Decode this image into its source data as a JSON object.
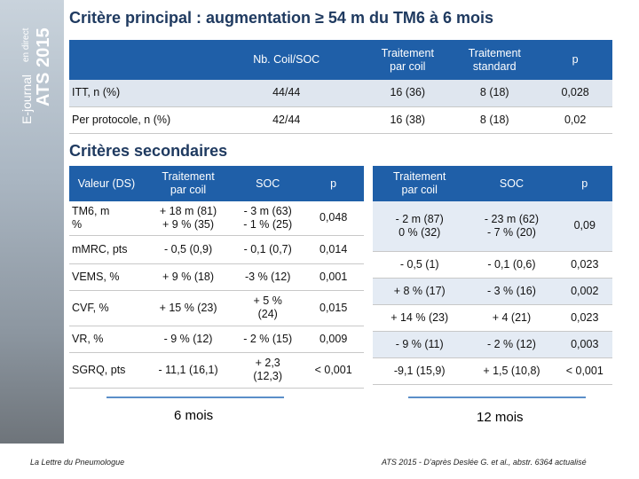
{
  "sidebar": {
    "brand": "E-journal",
    "live": "en direct",
    "event": "ATS 2015"
  },
  "title": "Critère principal : augmentation ≥ 54 m du TM6 à 6 mois",
  "primary_table": {
    "header": [
      "Nb. Coil/SOC",
      "Traitement\npar coil",
      "Traitement\nstandard",
      "p"
    ],
    "rows": [
      [
        "ITT, n (%)",
        "44/44",
        "16 (36)",
        "8 (18)",
        "0,028"
      ],
      [
        "Per protocole, n (%)",
        "42/44",
        "16 (38)",
        "8 (18)",
        "0,02"
      ]
    ]
  },
  "secondary_title": "Critères secondaires",
  "table_6_months": {
    "header": [
      "Valeur (DS)",
      "Traitement\npar coil",
      "SOC",
      "p"
    ],
    "rows": [
      [
        "TM6, m\n%",
        "+ 18 m (81)\n+ 9 % (35)",
        "- 3 m (63)\n- 1 % (25)",
        "0,048"
      ],
      [
        "mMRC, pts",
        "- 0,5 (0,9)",
        "- 0,1 (0,7)",
        "0,014"
      ],
      [
        "VEMS, %",
        "+ 9 % (18)",
        "-3 % (12)",
        "0,001"
      ],
      [
        "CVF, %",
        "+ 15 % (23)",
        "+ 5 %\n(24)",
        "0,015"
      ],
      [
        "VR, %",
        "- 9 % (12)",
        "- 2 % (15)",
        "0,009"
      ],
      [
        "SGRQ, pts",
        "- 11,1 (16,1)",
        "+ 2,3\n(12,3)",
        "< 0,001"
      ]
    ],
    "label": "6 mois"
  },
  "table_12_months": {
    "header": [
      "Traitement\npar coil",
      "SOC",
      "p"
    ],
    "rows": [
      [
        "- 2 m (87)\n0 % (32)",
        "- 23 m (62)\n- 7 % (20)",
        "0,09"
      ],
      [
        "- 0,5 (1)",
        "- 0,1 (0,6)",
        "0,023"
      ],
      [
        "+ 8 % (17)",
        "- 3 % (16)",
        "0,002"
      ],
      [
        "+ 14 % (23)",
        "+ 4 (21)",
        "0,023"
      ],
      [
        "- 9 % (11)",
        "- 2 % (12)",
        "0,003"
      ],
      [
        "-9,1 (15,9)",
        "+ 1,5 (10,8)",
        "< 0,001"
      ]
    ],
    "label": "12 mois"
  },
  "footer": {
    "left": "La Lettre du Pneumologue",
    "right": "ATS 2015 - D’après Deslée G. et al., abstr. 6364 actualisé"
  }
}
